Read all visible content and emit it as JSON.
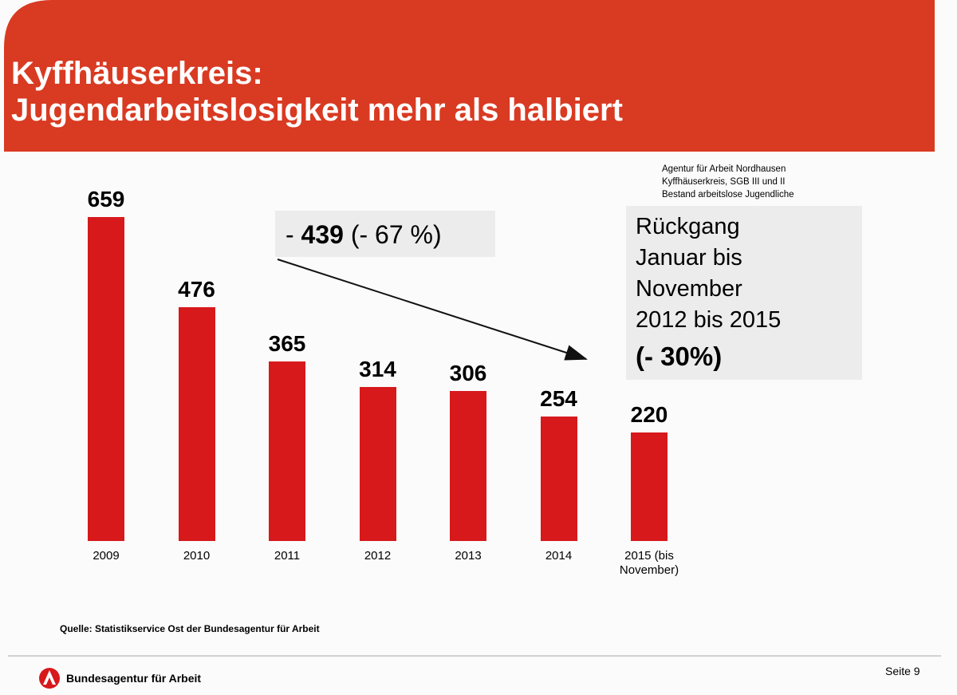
{
  "header": {
    "title_line1": "Kyffhäuserkreis:",
    "title_line2": "Jugendarbeitslosigkeit mehr als halbiert"
  },
  "chart_data": {
    "type": "bar",
    "categories": [
      "2009",
      "2010",
      "2011",
      "2012",
      "2013",
      "2014",
      "2015 (bis November)"
    ],
    "values": [
      659,
      476,
      365,
      314,
      306,
      254,
      220
    ],
    "color": "#d7191c",
    "change_prefix": "-",
    "change_value": 439,
    "change_percent": "(- 67 %)",
    "info_lines": [
      "Agentur für Arbeit Nordhausen",
      "Kyffhäuserkreis, SGB III und II",
      "Bestand arbeitslose Jugendliche"
    ],
    "box_lines": [
      "Rückgang",
      "Januar bis",
      "November",
      "2012 bis 2015",
      "(- 30%)"
    ],
    "source": "Quelle: Statistikservice Ost der Bundesagentur für Arbeit"
  },
  "footer": {
    "organization": "Bundesagentur für Arbeit",
    "page": "Seite 9"
  }
}
